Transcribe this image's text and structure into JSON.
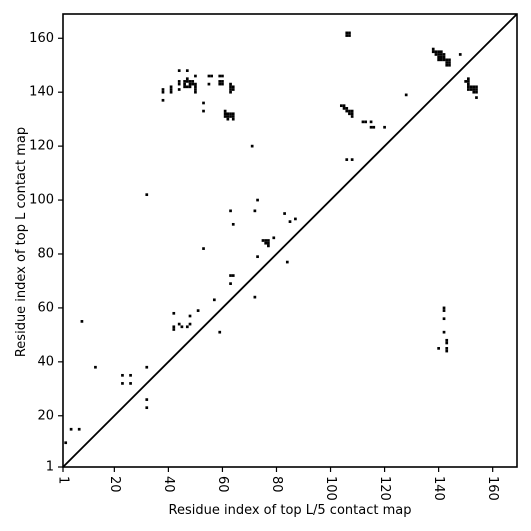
{
  "chart_data": {
    "type": "scatter",
    "title": "",
    "xlabel": "Residue index of top L/5 contact map",
    "ylabel": "Residue index of top L contact map",
    "xlim": [
      1,
      169
    ],
    "ylim": [
      1,
      169
    ],
    "xticks": [
      1,
      20,
      40,
      60,
      80,
      100,
      120,
      140,
      160
    ],
    "yticks": [
      1,
      20,
      40,
      60,
      80,
      100,
      120,
      140,
      160
    ],
    "xtick_rotation": -90,
    "grid": false,
    "marker": "square",
    "marker_color": "#000000",
    "diagonal_line": {
      "from": [
        1,
        1
      ],
      "to": [
        169,
        169
      ]
    },
    "series": [
      {
        "region": "upper-left",
        "points": [
          [
            2,
            10
          ],
          [
            4,
            15
          ],
          [
            7,
            15
          ],
          [
            8,
            55
          ],
          [
            13,
            38
          ],
          [
            23,
            32
          ],
          [
            23,
            35
          ],
          [
            26,
            32
          ],
          [
            26,
            35
          ],
          [
            32,
            23
          ],
          [
            32,
            26
          ],
          [
            32,
            38
          ],
          [
            32,
            102
          ],
          [
            38,
            137
          ],
          [
            38,
            140
          ],
          [
            38,
            141
          ],
          [
            41,
            140
          ],
          [
            41,
            141
          ],
          [
            41,
            142
          ],
          [
            42,
            52
          ],
          [
            42,
            53
          ],
          [
            42,
            58
          ],
          [
            44,
            54
          ],
          [
            44,
            141
          ],
          [
            44,
            143
          ],
          [
            44,
            144
          ],
          [
            44,
            148
          ],
          [
            45,
            53
          ],
          [
            46,
            142
          ],
          [
            46,
            143
          ],
          [
            46,
            144
          ],
          [
            47,
            53
          ],
          [
            47,
            142
          ],
          [
            47,
            144
          ],
          [
            47,
            145
          ],
          [
            47,
            148
          ],
          [
            48,
            54
          ],
          [
            48,
            57
          ],
          [
            48,
            142
          ],
          [
            48,
            143
          ],
          [
            48,
            144
          ],
          [
            49,
            143
          ],
          [
            49,
            144
          ],
          [
            50,
            140
          ],
          [
            50,
            141
          ],
          [
            50,
            142
          ],
          [
            50,
            143
          ],
          [
            50,
            146
          ],
          [
            51,
            59
          ],
          [
            53,
            82
          ],
          [
            53,
            133
          ],
          [
            53,
            136
          ],
          [
            55,
            143
          ],
          [
            55,
            146
          ],
          [
            56,
            146
          ],
          [
            57,
            63
          ],
          [
            59,
            51
          ],
          [
            59,
            143
          ],
          [
            59,
            144
          ],
          [
            59,
            146
          ],
          [
            60,
            143
          ],
          [
            60,
            144
          ],
          [
            60,
            146
          ],
          [
            61,
            131
          ],
          [
            61,
            132
          ],
          [
            61,
            133
          ],
          [
            62,
            130
          ],
          [
            62,
            131
          ],
          [
            62,
            132
          ],
          [
            63,
            69
          ],
          [
            63,
            96
          ],
          [
            63,
            72
          ],
          [
            63,
            131
          ],
          [
            63,
            132
          ],
          [
            63,
            140
          ],
          [
            63,
            141
          ],
          [
            63,
            142
          ],
          [
            63,
            143
          ],
          [
            64,
            72
          ],
          [
            64,
            91
          ],
          [
            64,
            130
          ],
          [
            64,
            131
          ],
          [
            64,
            132
          ],
          [
            64,
            141
          ],
          [
            64,
            142
          ],
          [
            71,
            120
          ],
          [
            72,
            64
          ],
          [
            72,
            96
          ],
          [
            73,
            79
          ],
          [
            73,
            100
          ],
          [
            75,
            85
          ],
          [
            76,
            84
          ],
          [
            76,
            85
          ],
          [
            77,
            83
          ],
          [
            77,
            84
          ],
          [
            77,
            85
          ],
          [
            79,
            86
          ],
          [
            83,
            95
          ],
          [
            84,
            77
          ],
          [
            85,
            92
          ],
          [
            87,
            93
          ],
          [
            104,
            135
          ],
          [
            105,
            134
          ],
          [
            105,
            135
          ],
          [
            106,
            133
          ],
          [
            106,
            134
          ],
          [
            106,
            115
          ],
          [
            106,
            161
          ],
          [
            106,
            162
          ],
          [
            107,
            132
          ],
          [
            107,
            133
          ],
          [
            107,
            161
          ],
          [
            107,
            162
          ],
          [
            108,
            131
          ],
          [
            108,
            132
          ],
          [
            108,
            133
          ],
          [
            108,
            115
          ],
          [
            112,
            129
          ],
          [
            113,
            129
          ],
          [
            115,
            127
          ],
          [
            115,
            129
          ],
          [
            116,
            127
          ],
          [
            120,
            127
          ],
          [
            128,
            139
          ]
        ]
      },
      {
        "region": "lower-right",
        "points": [
          [
            138,
            155
          ],
          [
            138,
            156
          ],
          [
            139,
            154
          ],
          [
            139,
            155
          ],
          [
            140,
            45
          ],
          [
            140,
            152
          ],
          [
            140,
            153
          ],
          [
            140,
            154
          ],
          [
            140,
            155
          ],
          [
            141,
            152
          ],
          [
            141,
            153
          ],
          [
            141,
            154
          ],
          [
            141,
            155
          ],
          [
            142,
            56
          ],
          [
            142,
            59
          ],
          [
            142,
            60
          ],
          [
            142,
            51
          ],
          [
            142,
            152
          ],
          [
            142,
            153
          ],
          [
            142,
            154
          ],
          [
            143,
            47
          ],
          [
            143,
            48
          ],
          [
            143,
            44
          ],
          [
            143,
            45
          ],
          [
            143,
            150
          ],
          [
            143,
            151
          ],
          [
            143,
            152
          ],
          [
            144,
            150
          ],
          [
            144,
            151
          ],
          [
            144,
            152
          ],
          [
            148,
            154
          ],
          [
            150,
            144
          ],
          [
            151,
            141
          ],
          [
            151,
            142
          ],
          [
            151,
            143
          ],
          [
            151,
            144
          ],
          [
            151,
            145
          ],
          [
            152,
            141
          ],
          [
            152,
            142
          ],
          [
            153,
            140
          ],
          [
            153,
            141
          ],
          [
            153,
            142
          ],
          [
            154,
            138
          ],
          [
            154,
            140
          ],
          [
            154,
            141
          ],
          [
            154,
            142
          ]
        ]
      }
    ]
  }
}
